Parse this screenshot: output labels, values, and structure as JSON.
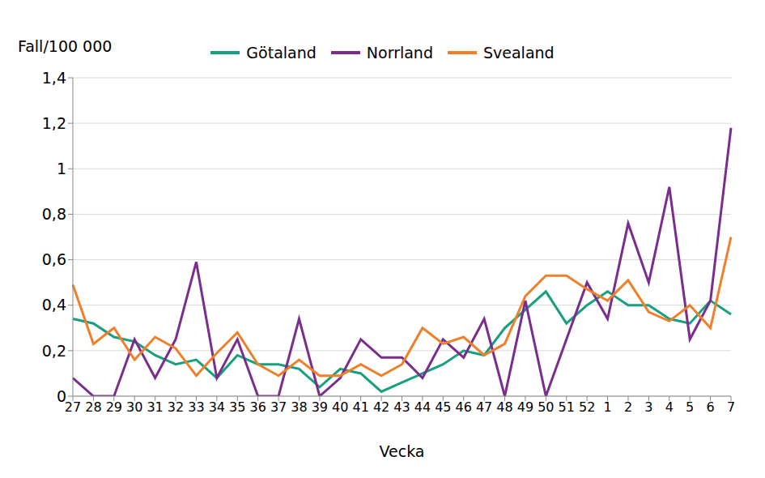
{
  "chart_data": {
    "type": "line",
    "y_label": "Fall/100 000",
    "x_label": "Vecka",
    "categories": [
      "27",
      "28",
      "29",
      "30",
      "31",
      "32",
      "33",
      "34",
      "35",
      "36",
      "37",
      "38",
      "39",
      "40",
      "41",
      "42",
      "43",
      "44",
      "45",
      "46",
      "47",
      "48",
      "49",
      "50",
      "51",
      "52",
      "1",
      "2",
      "3",
      "4",
      "5",
      "6",
      "7"
    ],
    "series": [
      {
        "name": "Götaland",
        "color": "#16a07f",
        "values": [
          0.34,
          0.32,
          0.26,
          0.24,
          0.18,
          0.14,
          0.16,
          0.08,
          0.18,
          0.14,
          0.14,
          0.12,
          0.04,
          0.12,
          0.1,
          0.02,
          0.06,
          0.1,
          0.14,
          0.2,
          0.18,
          0.3,
          0.38,
          0.46,
          0.32,
          0.4,
          0.46,
          0.4,
          0.4,
          0.34,
          0.32,
          0.42,
          0.36
        ]
      },
      {
        "name": "Norrland",
        "color": "#7b2d8e",
        "values": [
          0.08,
          0,
          0,
          0.25,
          0.08,
          0.25,
          0.59,
          0.08,
          0.25,
          0,
          0,
          0.34,
          0,
          0.08,
          0.25,
          0.17,
          0.17,
          0.08,
          0.25,
          0.17,
          0.34,
          0,
          0.42,
          0,
          0.25,
          0.5,
          0.34,
          0.76,
          0.5,
          0.92,
          0.25,
          0.42,
          1.18
        ]
      },
      {
        "name": "Svealand",
        "color": "#f07f2a",
        "values": [
          0.49,
          0.23,
          0.3,
          0.16,
          0.26,
          0.21,
          0.09,
          0.19,
          0.28,
          0.14,
          0.09,
          0.16,
          0.09,
          0.09,
          0.14,
          0.09,
          0.14,
          0.3,
          0.23,
          0.26,
          0.18,
          0.23,
          0.44,
          0.53,
          0.53,
          0.47,
          0.42,
          0.51,
          0.37,
          0.33,
          0.4,
          0.3,
          0.7
        ]
      }
    ],
    "ylim": [
      0,
      1.4
    ],
    "yticks": [
      0,
      {
        "value": 0.2,
        "label": "0,2"
      },
      {
        "value": 0.4,
        "label": "0,4"
      },
      {
        "value": 0.6,
        "label": "0,6"
      },
      {
        "value": 0.8,
        "label": "0,8"
      },
      1,
      {
        "value": 1.2,
        "label": "1,2"
      },
      {
        "value": 1.4,
        "label": "1,4"
      }
    ],
    "grid": true,
    "legend": "top"
  }
}
